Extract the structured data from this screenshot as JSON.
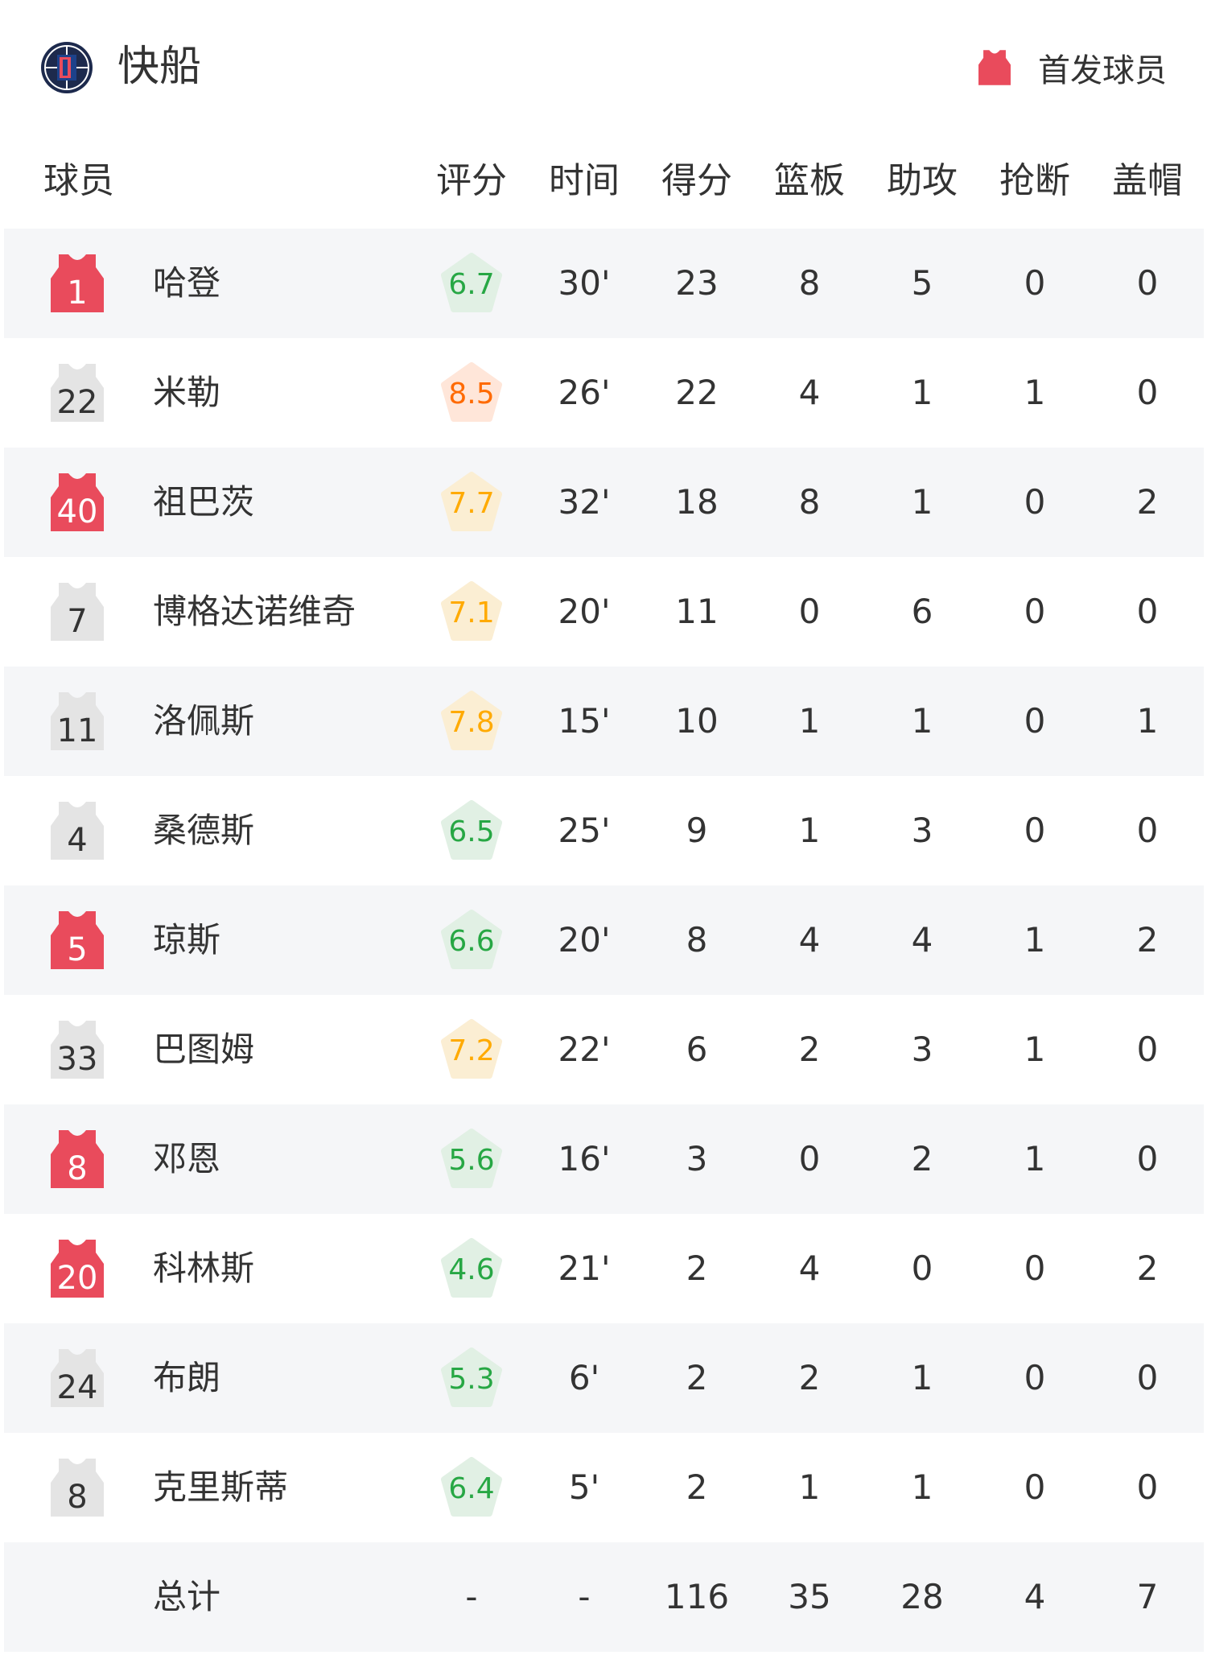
{
  "team": {
    "name": "快船",
    "logo_icon": "clippers-logo-icon"
  },
  "legend": {
    "label": "首发球员",
    "icon": "red-jersey-icon",
    "starter_color": "#e94b5c",
    "bench_color": "#e4e4e4"
  },
  "columns": [
    "球员",
    "评分",
    "时间",
    "得分",
    "篮板",
    "助攻",
    "抢断",
    "盖帽"
  ],
  "rating_colors": {
    "green": {
      "text": "#27a744",
      "bg": "#e1f0e4"
    },
    "orange": {
      "text": "#ff6a00",
      "bg": "#ffe6d9"
    },
    "yellow": {
      "text": "#ffaa00",
      "bg": "#fbeed3"
    }
  },
  "players": [
    {
      "number": "1",
      "starter": true,
      "name": "哈登",
      "rating": "6.7",
      "rating_color": "green",
      "min": "30'",
      "pts": "23",
      "reb": "8",
      "ast": "5",
      "stl": "0",
      "blk": "0"
    },
    {
      "number": "22",
      "starter": false,
      "name": "米勒",
      "rating": "8.5",
      "rating_color": "orange",
      "min": "26'",
      "pts": "22",
      "reb": "4",
      "ast": "1",
      "stl": "1",
      "blk": "0"
    },
    {
      "number": "40",
      "starter": true,
      "name": "祖巴茨",
      "rating": "7.7",
      "rating_color": "yellow",
      "min": "32'",
      "pts": "18",
      "reb": "8",
      "ast": "1",
      "stl": "0",
      "blk": "2"
    },
    {
      "number": "7",
      "starter": false,
      "name": "博格达诺维奇",
      "rating": "7.1",
      "rating_color": "yellow",
      "min": "20'",
      "pts": "11",
      "reb": "0",
      "ast": "6",
      "stl": "0",
      "blk": "0"
    },
    {
      "number": "11",
      "starter": false,
      "name": "洛佩斯",
      "rating": "7.8",
      "rating_color": "yellow",
      "min": "15'",
      "pts": "10",
      "reb": "1",
      "ast": "1",
      "stl": "0",
      "blk": "1"
    },
    {
      "number": "4",
      "starter": false,
      "name": "桑德斯",
      "rating": "6.5",
      "rating_color": "green",
      "min": "25'",
      "pts": "9",
      "reb": "1",
      "ast": "3",
      "stl": "0",
      "blk": "0"
    },
    {
      "number": "5",
      "starter": true,
      "name": "琼斯",
      "rating": "6.6",
      "rating_color": "green",
      "min": "20'",
      "pts": "8",
      "reb": "4",
      "ast": "4",
      "stl": "1",
      "blk": "2"
    },
    {
      "number": "33",
      "starter": false,
      "name": "巴图姆",
      "rating": "7.2",
      "rating_color": "yellow",
      "min": "22'",
      "pts": "6",
      "reb": "2",
      "ast": "3",
      "stl": "1",
      "blk": "0"
    },
    {
      "number": "8",
      "starter": true,
      "name": "邓恩",
      "rating": "5.6",
      "rating_color": "green",
      "min": "16'",
      "pts": "3",
      "reb": "0",
      "ast": "2",
      "stl": "1",
      "blk": "0"
    },
    {
      "number": "20",
      "starter": true,
      "name": "科林斯",
      "rating": "4.6",
      "rating_color": "green",
      "min": "21'",
      "pts": "2",
      "reb": "4",
      "ast": "0",
      "stl": "0",
      "blk": "2"
    },
    {
      "number": "24",
      "starter": false,
      "name": "布朗",
      "rating": "5.3",
      "rating_color": "green",
      "min": "6'",
      "pts": "2",
      "reb": "2",
      "ast": "1",
      "stl": "0",
      "blk": "0"
    },
    {
      "number": "8",
      "starter": false,
      "name": "克里斯蒂",
      "rating": "6.4",
      "rating_color": "green",
      "min": "5'",
      "pts": "2",
      "reb": "1",
      "ast": "1",
      "stl": "0",
      "blk": "0"
    }
  ],
  "total": {
    "label": "总计",
    "rating": "-",
    "min": "-",
    "pts": "116",
    "reb": "35",
    "ast": "28",
    "stl": "4",
    "blk": "7"
  }
}
